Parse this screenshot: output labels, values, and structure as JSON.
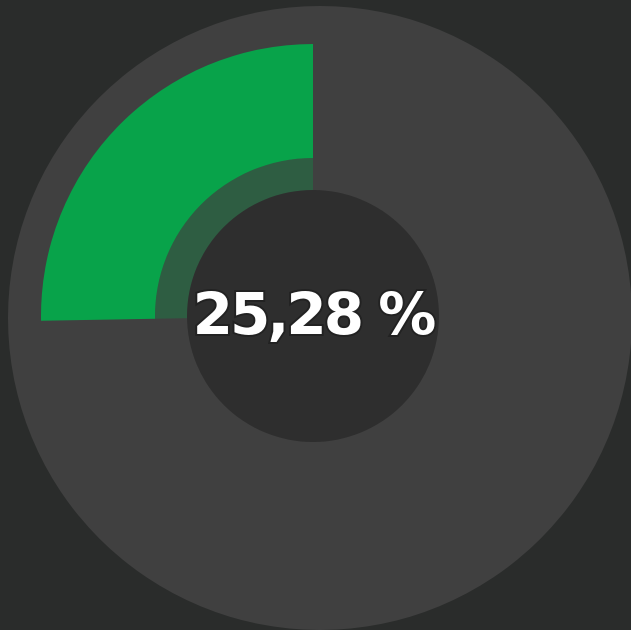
{
  "chart_data": {
    "type": "donut",
    "values": [
      25.28
    ],
    "value_labels": [
      "25,28 %"
    ],
    "color": "#08a34a"
  }
}
